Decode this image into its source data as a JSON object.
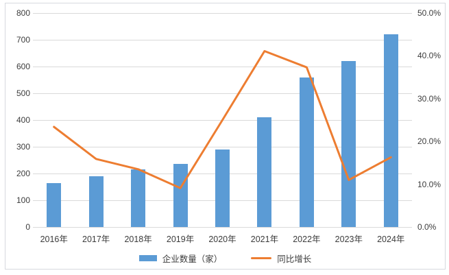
{
  "chart_data": {
    "type": "bar",
    "subtype": "combo-bar-line-dual-axis",
    "title": "",
    "xlabel": "",
    "ylabel": "",
    "categories": [
      "2016年",
      "2017年",
      "2018年",
      "2019年",
      "2020年",
      "2021年",
      "2022年",
      "2023年",
      "2024年"
    ],
    "series": [
      {
        "name": "企业数量（家）",
        "type": "bar",
        "axis": "left",
        "color": "#5B9BD5",
        "values": [
          165,
          190,
          215,
          235,
          290,
          410,
          560,
          620,
          720
        ]
      },
      {
        "name": "同比增长",
        "type": "line",
        "axis": "right",
        "color": "#ED7D31",
        "unit": "%",
        "values": [
          23.4,
          15.9,
          13.5,
          9.1,
          25.0,
          41.1,
          37.3,
          11.0,
          16.3
        ]
      }
    ],
    "left_axis": {
      "min": 0,
      "max": 800,
      "step": 100
    },
    "right_axis": {
      "min": 0,
      "max": 50,
      "step": 10,
      "decimals": 1,
      "suffix": "%"
    },
    "grid": true,
    "gridlines_follow": "left_axis",
    "legend_position": "bottom"
  },
  "style": {
    "background": "#ffffff",
    "frame_border_color": "#d6d9de",
    "gridline_color": "#d9d9d9",
    "text_color": "#3b3b3b"
  }
}
